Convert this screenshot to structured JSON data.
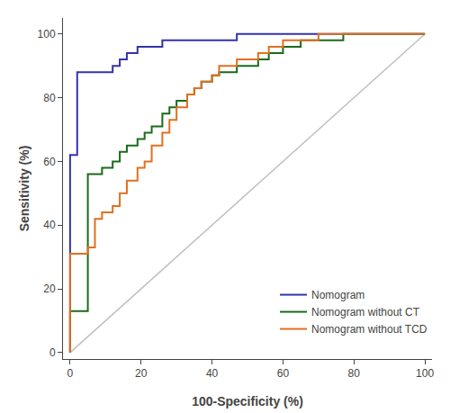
{
  "chart_data": {
    "type": "line",
    "xlabel": "100-Specificity (%)",
    "ylabel": "Sensitivity (%)",
    "xlim": [
      -2,
      102
    ],
    "ylim": [
      -2,
      105
    ],
    "xticks": [
      0,
      20,
      40,
      60,
      80,
      100
    ],
    "yticks": [
      0,
      20,
      40,
      60,
      80,
      100
    ],
    "grid": false,
    "legend": "lower right",
    "series": [
      {
        "color": "#c0c0c0",
        "line_style": "solid",
        "x": [
          0,
          100
        ],
        "values": [
          0,
          100
        ]
      },
      {
        "name": "Nomogram",
        "color": "#3333aa",
        "line_style": "step",
        "x": [
          0,
          0,
          1,
          2,
          2,
          4,
          5,
          6,
          7,
          8,
          9,
          12,
          14,
          16,
          19,
          21,
          26,
          30,
          35,
          42,
          47,
          53,
          58,
          63,
          70,
          77,
          84,
          91,
          95,
          100
        ],
        "values": [
          0,
          62,
          62,
          62,
          88,
          88,
          88,
          88,
          88,
          88,
          88,
          90,
          92,
          94,
          96,
          96,
          98,
          98,
          98,
          98,
          100,
          100,
          100,
          100,
          100,
          100,
          100,
          100,
          100,
          100
        ]
      },
      {
        "name": "Nomogram without CT",
        "color": "#1a6b1a",
        "line_style": "step",
        "x": [
          0,
          0,
          2,
          5,
          7,
          9,
          12,
          14,
          16,
          19,
          21,
          23,
          26,
          28,
          30,
          33,
          35,
          37,
          40,
          42,
          47,
          53,
          56,
          60,
          65,
          70,
          77,
          84,
          88,
          93,
          97,
          100
        ],
        "values": [
          0,
          13,
          13,
          56,
          56,
          58,
          60,
          63,
          65,
          67,
          69,
          71,
          75,
          77,
          79,
          81,
          83,
          85,
          87,
          88,
          90,
          92,
          94,
          96,
          98,
          98,
          100,
          100,
          100,
          100,
          100,
          100
        ]
      },
      {
        "name": "Nomogram without TCD",
        "color": "#e07020",
        "line_style": "step",
        "x": [
          0,
          0,
          2,
          5,
          7,
          9,
          12,
          14,
          16,
          19,
          21,
          23,
          26,
          28,
          30,
          33,
          35,
          37,
          40,
          42,
          47,
          53,
          56,
          60,
          65,
          70,
          77,
          84,
          88,
          93,
          97,
          100
        ],
        "values": [
          0,
          31,
          31,
          33,
          42,
          44,
          46,
          50,
          54,
          58,
          60,
          65,
          69,
          73,
          77,
          81,
          83,
          85,
          87,
          90,
          92,
          94,
          96,
          98,
          98,
          100,
          100,
          100,
          100,
          100,
          100,
          100
        ]
      }
    ]
  }
}
